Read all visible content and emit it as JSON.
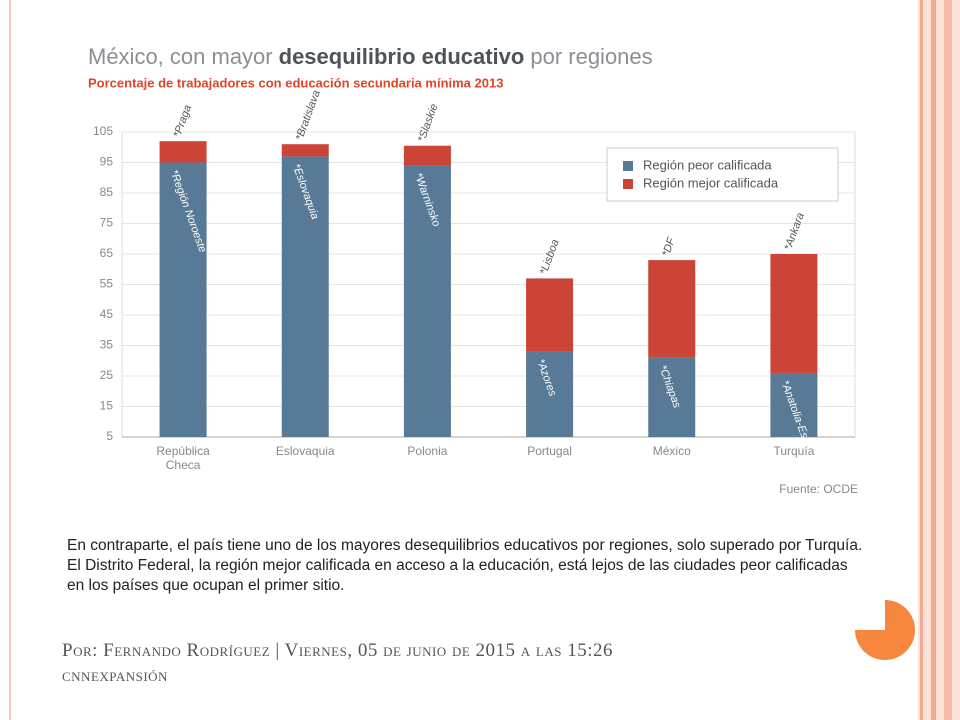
{
  "chart_data": {
    "type": "stacked_bar",
    "title": [
      "México, con mayor",
      "desequilibrio educativo",
      "por regiones"
    ],
    "subtitle": "Porcentaje de trabajadores con educación secundaria mínima 2013",
    "categories": [
      "República Checa",
      "Eslovaquia",
      "Polonia",
      "Portugal",
      "México",
      "Turquía"
    ],
    "series": [
      {
        "name": "Región peor calificada",
        "color": "#587a96",
        "values": [
          90,
          92,
          89,
          28,
          26,
          21
        ],
        "labels": [
          "*Región Noroeste",
          "*Eslovaquia",
          "*Warninsko",
          "*Azores",
          "*Chiapas",
          "*Anatolia-Este"
        ]
      },
      {
        "name": "Región mejor calificada",
        "color": "#cc4438",
        "values": [
          7,
          4,
          6.5,
          24,
          32,
          39
        ],
        "labels": [
          "*Praga",
          "*Bratislava",
          "*Slaskie",
          "*Lisboa",
          "*DF",
          "*Ankara"
        ]
      }
    ],
    "ylim": [
      5,
      105
    ],
    "yticks": [
      5,
      15,
      25,
      35,
      45,
      55,
      65,
      75,
      85,
      95,
      105
    ],
    "grid": true,
    "legend": "upper right",
    "source": "Fuente: OCDE"
  },
  "slide": {
    "paragraph": "En contraparte, el país tiene uno de los mayores desequilibrios educativos por regiones, solo superado por Turquía. El Distrito Federal, la región mejor calificada en acceso a la educación, está lejos de las ciudades peor calificadas en los países que ocupan el primer sitio.",
    "byline": "Por: Fernando Rodríguez | Viernes, 05 de junio de 2015 a las 15:26",
    "outlet": "cnnexpansión"
  }
}
